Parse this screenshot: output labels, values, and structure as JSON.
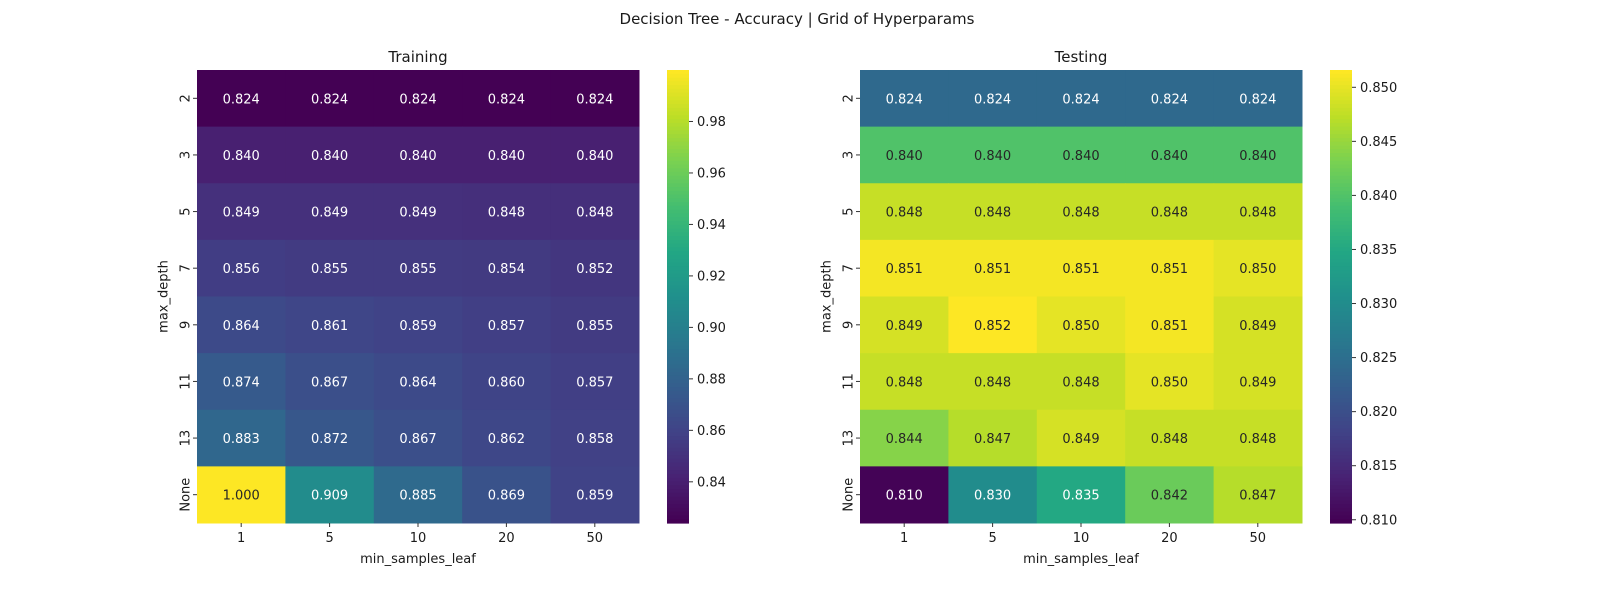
{
  "figure": {
    "suptitle": "Decision Tree - Accuracy | Grid of Hyperparams"
  },
  "chart_data": [
    {
      "type": "heatmap",
      "title": "Training",
      "xlabel": "min_samples_leaf",
      "ylabel": "max_depth",
      "x_categories": [
        "1",
        "5",
        "10",
        "20",
        "50"
      ],
      "y_categories": [
        "2",
        "3",
        "5",
        "7",
        "9",
        "11",
        "13",
        "None"
      ],
      "values": [
        [
          0.824,
          0.824,
          0.824,
          0.824,
          0.824
        ],
        [
          0.84,
          0.84,
          0.84,
          0.84,
          0.84
        ],
        [
          0.849,
          0.849,
          0.849,
          0.848,
          0.848
        ],
        [
          0.856,
          0.855,
          0.855,
          0.854,
          0.852
        ],
        [
          0.864,
          0.861,
          0.859,
          0.857,
          0.855
        ],
        [
          0.874,
          0.867,
          0.864,
          0.86,
          0.857
        ],
        [
          0.883,
          0.872,
          0.867,
          0.862,
          0.858
        ],
        [
          1.0,
          0.909,
          0.885,
          0.869,
          0.859
        ]
      ],
      "value_labels": [
        [
          "0.824",
          "0.824",
          "0.824",
          "0.824",
          "0.824"
        ],
        [
          "0.840",
          "0.840",
          "0.840",
          "0.840",
          "0.840"
        ],
        [
          "0.849",
          "0.849",
          "0.849",
          "0.848",
          "0.848"
        ],
        [
          "0.856",
          "0.855",
          "0.855",
          "0.854",
          "0.852"
        ],
        [
          "0.864",
          "0.861",
          "0.859",
          "0.857",
          "0.855"
        ],
        [
          "0.874",
          "0.867",
          "0.864",
          "0.860",
          "0.857"
        ],
        [
          "0.883",
          "0.872",
          "0.867",
          "0.862",
          "0.858"
        ],
        [
          "1.000",
          "0.909",
          "0.885",
          "0.869",
          "0.859"
        ]
      ],
      "colormap": "viridis",
      "vmin": 0.824,
      "vmax": 1.0,
      "colorbar_ticks": [
        0.84,
        0.86,
        0.88,
        0.9,
        0.92,
        0.94,
        0.96,
        0.98
      ],
      "colorbar_tick_labels": [
        "0.84",
        "0.86",
        "0.88",
        "0.90",
        "0.92",
        "0.94",
        "0.96",
        "0.98"
      ]
    },
    {
      "type": "heatmap",
      "title": "Testing",
      "xlabel": "min_samples_leaf",
      "ylabel": "max_depth",
      "x_categories": [
        "1",
        "5",
        "10",
        "20",
        "50"
      ],
      "y_categories": [
        "2",
        "3",
        "5",
        "7",
        "9",
        "11",
        "13",
        "None"
      ],
      "values": [
        [
          0.824,
          0.824,
          0.824,
          0.824,
          0.824
        ],
        [
          0.84,
          0.84,
          0.84,
          0.84,
          0.84
        ],
        [
          0.848,
          0.848,
          0.848,
          0.848,
          0.848
        ],
        [
          0.851,
          0.851,
          0.851,
          0.851,
          0.85
        ],
        [
          0.849,
          0.852,
          0.85,
          0.851,
          0.849
        ],
        [
          0.848,
          0.848,
          0.848,
          0.85,
          0.849
        ],
        [
          0.844,
          0.847,
          0.849,
          0.848,
          0.848
        ],
        [
          0.81,
          0.83,
          0.835,
          0.842,
          0.847
        ]
      ],
      "value_labels": [
        [
          "0.824",
          "0.824",
          "0.824",
          "0.824",
          "0.824"
        ],
        [
          "0.840",
          "0.840",
          "0.840",
          "0.840",
          "0.840"
        ],
        [
          "0.848",
          "0.848",
          "0.848",
          "0.848",
          "0.848"
        ],
        [
          "0.851",
          "0.851",
          "0.851",
          "0.851",
          "0.850"
        ],
        [
          "0.849",
          "0.852",
          "0.850",
          "0.851",
          "0.849"
        ],
        [
          "0.848",
          "0.848",
          "0.848",
          "0.850",
          "0.849"
        ],
        [
          "0.844",
          "0.847",
          "0.849",
          "0.848",
          "0.848"
        ],
        [
          "0.810",
          "0.830",
          "0.835",
          "0.842",
          "0.847"
        ]
      ],
      "colormap": "viridis",
      "vmin": 0.8097,
      "vmax": 0.8516,
      "colorbar_ticks": [
        0.81,
        0.815,
        0.82,
        0.825,
        0.83,
        0.835,
        0.84,
        0.845,
        0.85
      ],
      "colorbar_tick_labels": [
        "0.810",
        "0.815",
        "0.820",
        "0.825",
        "0.830",
        "0.835",
        "0.840",
        "0.845",
        "0.850"
      ]
    }
  ]
}
